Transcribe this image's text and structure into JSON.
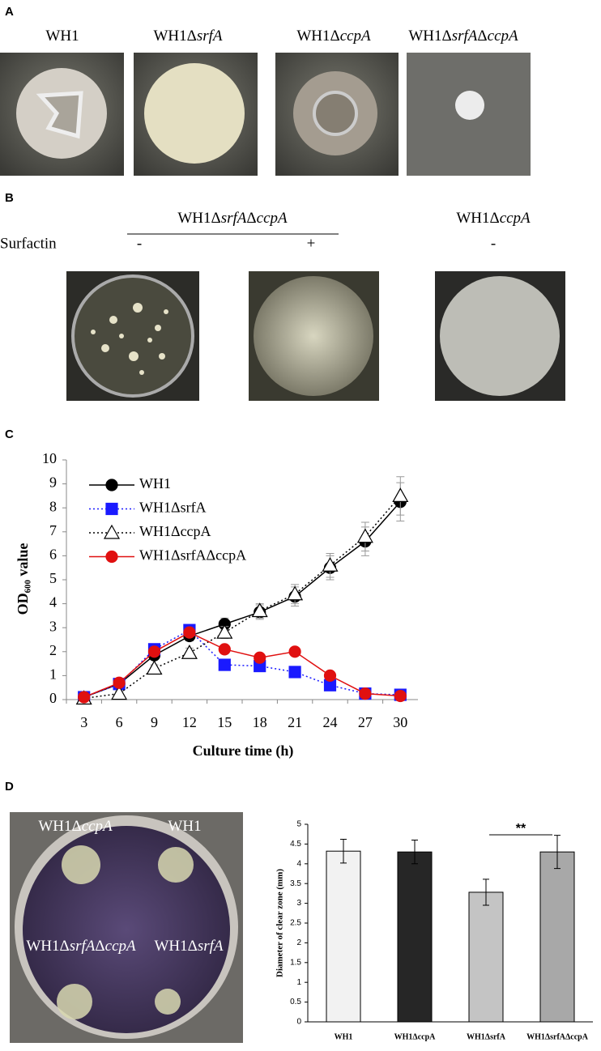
{
  "panel_labels": [
    "A",
    "B",
    "C",
    "D"
  ],
  "panel_a": {
    "strains": [
      [
        "WH1"
      ],
      [
        "WH1Δ",
        "srfA"
      ],
      [
        "WH1Δ",
        "ccpA"
      ],
      [
        "WH1Δ",
        "srfA",
        "Δ",
        "ccpA"
      ]
    ]
  },
  "panel_b": {
    "group_label": [
      "WH1Δ",
      "srfA",
      "Δ",
      "ccpA"
    ],
    "row_label": "Surfactin",
    "treatments": [
      "-",
      "+",
      "-"
    ],
    "other_label": [
      "WH1Δ",
      "ccpA"
    ]
  },
  "panel_d": {
    "plate_labels": [
      [
        "WH1Δ",
        "ccpA"
      ],
      [
        "WH1"
      ],
      [
        "WH1Δ",
        "srfA",
        "Δ",
        "ccpA"
      ],
      [
        "WH1Δ",
        "srfA"
      ]
    ]
  },
  "chart_data": [
    {
      "type": "line",
      "x_label": "Culture time (h)",
      "y_label": "OD₆₀₀ value",
      "categories": [
        "3",
        "6",
        "9",
        "12",
        "15",
        "18",
        "21",
        "24",
        "27",
        "30"
      ],
      "ylim": [
        0,
        10
      ],
      "yticks": [
        0,
        1,
        2,
        3,
        4,
        5,
        6,
        7,
        8,
        9,
        10
      ],
      "legend": "top-left",
      "series": [
        {
          "name": "WH1",
          "color": "#000000",
          "dash": "solid",
          "marker": "circle",
          "marker_fill": "#000000",
          "values": [
            0.1,
            0.65,
            1.85,
            2.65,
            3.15,
            3.65,
            4.3,
            5.5,
            6.6,
            8.25
          ],
          "errors": [
            0.05,
            0.1,
            0.15,
            0.2,
            0.25,
            0.3,
            0.4,
            0.5,
            0.6,
            0.8
          ]
        },
        {
          "name": "WH1ΔsrfA",
          "color": "#1a1aff",
          "dash": "dotted",
          "marker": "square",
          "marker_fill": "#1a1aff",
          "values": [
            0.1,
            0.65,
            2.1,
            2.9,
            1.45,
            1.4,
            1.15,
            0.6,
            0.25,
            0.2
          ]
        },
        {
          "name": "WH1ΔccpA",
          "color": "#000000",
          "dash": "dotted",
          "marker": "triangle",
          "marker_fill": "#ffffff",
          "values": [
            0.05,
            0.25,
            1.3,
            1.95,
            2.8,
            3.7,
            4.4,
            5.6,
            6.8,
            8.5
          ],
          "errors": [
            0.05,
            0.1,
            0.15,
            0.2,
            0.25,
            0.3,
            0.4,
            0.5,
            0.6,
            0.8
          ]
        },
        {
          "name": "WH1ΔsrfAΔccpA",
          "color": "#e01010",
          "dash": "solid",
          "marker": "circle",
          "marker_fill": "#e01010",
          "values": [
            0.1,
            0.7,
            2.0,
            2.8,
            2.1,
            1.75,
            2.0,
            1.0,
            0.25,
            0.15
          ]
        }
      ]
    },
    {
      "type": "bar",
      "y_label": "Diameter of clear zone (mm)",
      "categories": [
        "WH1",
        "WH1ΔccpA",
        "WH1ΔsrfA",
        "WH1ΔsrfAΔccpA"
      ],
      "values": [
        4.32,
        4.3,
        3.28,
        4.3
      ],
      "errors": [
        0.3,
        0.3,
        0.33,
        0.42
      ],
      "colors": [
        "#f2f2f2",
        "#262626",
        "#c4c4c4",
        "#a8a8a8"
      ],
      "ylim": [
        0,
        5
      ],
      "yticks": [
        0,
        0.5,
        1,
        1.5,
        2,
        2.5,
        3,
        3.5,
        4,
        4.5,
        5
      ],
      "annotation": "**"
    }
  ]
}
